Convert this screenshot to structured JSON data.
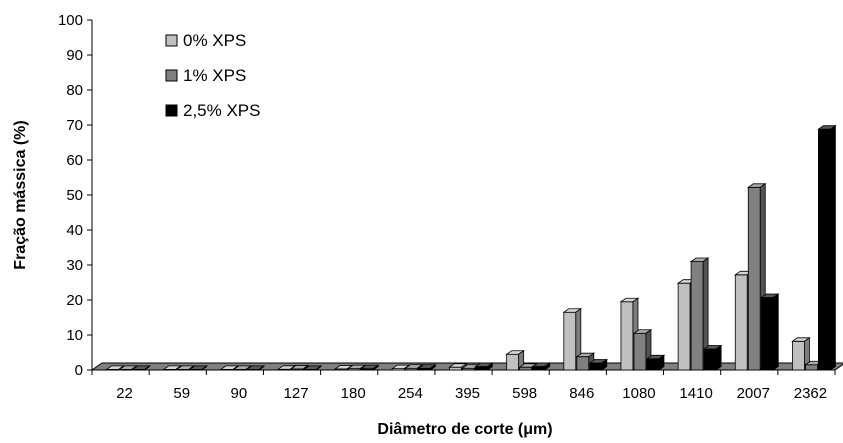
{
  "chart_data": {
    "type": "bar",
    "title": "",
    "xlabel": "Diâmetro de corte (μm)",
    "ylabel": "Fração mássica (%)",
    "ylim": [
      0,
      100
    ],
    "yticks": [
      "0",
      "10",
      "20",
      "30",
      "40",
      "50",
      "60",
      "70",
      "80",
      "90",
      "100"
    ],
    "grid": false,
    "legend_position": "top-left",
    "categories": [
      "22",
      "59",
      "90",
      "127",
      "180",
      "254",
      "395",
      "598",
      "846",
      "1080",
      "1410",
      "2007",
      "2362"
    ],
    "series": [
      {
        "name": "0% XPS",
        "color": "#c0c0c0",
        "values": [
          0.1,
          0.1,
          0.1,
          0.2,
          0.3,
          0.4,
          0.8,
          4.5,
          16.5,
          19.5,
          24.8,
          27.2,
          8.2
        ]
      },
      {
        "name": "1% XPS",
        "color": "#808080",
        "values": [
          0.1,
          0.1,
          0.1,
          0.3,
          0.4,
          0.5,
          0.5,
          0.8,
          3.8,
          10.5,
          31.0,
          52.2,
          1.5
        ]
      },
      {
        "name": "2,5% XPS",
        "color": "#000000",
        "values": [
          0.1,
          0.1,
          0.1,
          0.1,
          0.4,
          0.5,
          1.0,
          1.0,
          2.0,
          3.2,
          6.0,
          20.7,
          68.8
        ]
      }
    ]
  }
}
